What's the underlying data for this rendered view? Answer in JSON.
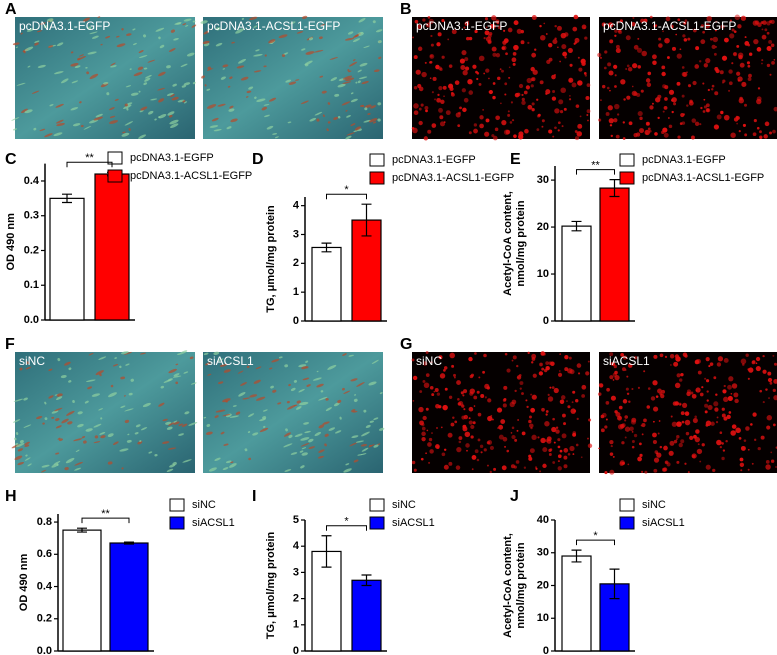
{
  "images": [
    {
      "panel": "A",
      "labels": [
        "pcDNA3.1-EGFP",
        "pcDNA3.1-ACSL1-EGFP"
      ]
    },
    {
      "panel": "B",
      "labels": [
        "pcDNA3.1-EGFP",
        "pcDNA3.1-ACSL1-EGFP"
      ]
    },
    {
      "panel": "F",
      "labels": [
        "siNC",
        "siACSL1"
      ]
    },
    {
      "panel": "G",
      "labels": [
        "siNC",
        "siACSL1"
      ]
    }
  ],
  "chart_data": [
    {
      "type": "bar",
      "panel": "C",
      "ylabel": [
        "OD 490 nm"
      ],
      "significance": "**",
      "series": [
        {
          "name": "pcDNA3.1-EGFP",
          "color": "#ffffff",
          "values": [
            0.35
          ],
          "errors": [
            0.012
          ]
        },
        {
          "name": "pcDNA3.1-ACSL1-EGFP",
          "color": "#ff0000",
          "values": [
            0.42
          ],
          "errors": [
            0.005
          ]
        }
      ],
      "ylim": [
        0,
        0.45
      ],
      "yticks": [
        {
          "value": 0,
          "label": "0.0"
        },
        0.1,
        0.2,
        0.3,
        0.4
      ]
    },
    {
      "type": "bar",
      "panel": "D",
      "ylabel": [
        "TG, μmol/mg protein"
      ],
      "significance": "*",
      "series": [
        {
          "name": "pcDNA3.1-EGFP",
          "color": "#ffffff",
          "values": [
            2.55
          ],
          "errors": [
            0.15
          ]
        },
        {
          "name": "pcDNA3.1-ACSL1-EGFP",
          "color": "#ff0000",
          "values": [
            3.5
          ],
          "errors": [
            0.55
          ]
        }
      ],
      "ylim": [
        0,
        4.3
      ],
      "yticks": [
        0,
        1,
        2,
        3,
        4
      ]
    },
    {
      "type": "bar",
      "panel": "E",
      "ylabel": [
        "Acetyl-CoA content,",
        "nmol/mg protein"
      ],
      "significance": "**",
      "series": [
        {
          "name": "pcDNA3.1-EGFP",
          "color": "#ffffff",
          "values": [
            20.2
          ],
          "errors": [
            1
          ]
        },
        {
          "name": "pcDNA3.1-ACSL1-EGFP",
          "color": "#ff0000",
          "values": [
            28.3
          ],
          "errors": [
            1.8
          ]
        }
      ],
      "ylim": [
        0,
        33
      ],
      "yticks": [
        0,
        10,
        20,
        30
      ]
    },
    {
      "type": "bar",
      "panel": "H",
      "ylabel": [
        "OD 490 nm"
      ],
      "significance": "**",
      "series": [
        {
          "name": "siNC",
          "color": "#ffffff",
          "values": [
            0.75
          ],
          "errors": [
            0.012
          ]
        },
        {
          "name": "siACSL1",
          "color": "#0000ff",
          "values": [
            0.67
          ],
          "errors": [
            0.006
          ]
        }
      ],
      "ylim": [
        0,
        0.85
      ],
      "yticks": [
        {
          "value": 0,
          "label": "0.0"
        },
        0.2,
        0.4,
        0.6,
        0.8
      ]
    },
    {
      "type": "bar",
      "panel": "I",
      "ylabel": [
        "TG, μmol/mg protein"
      ],
      "significance": "*",
      "series": [
        {
          "name": "siNC",
          "color": "#ffffff",
          "values": [
            3.8
          ],
          "errors": [
            0.6
          ]
        },
        {
          "name": "siACSL1",
          "color": "#0000ff",
          "values": [
            2.7
          ],
          "errors": [
            0.2
          ]
        }
      ],
      "ylim": [
        0,
        5
      ],
      "yticks": [
        0,
        1,
        2,
        3,
        4,
        5
      ]
    },
    {
      "type": "bar",
      "panel": "J",
      "ylabel": [
        "Acetyl-CoA content,",
        "nmol/mg protein"
      ],
      "significance": "*",
      "series": [
        {
          "name": "siNC",
          "color": "#ffffff",
          "values": [
            29
          ],
          "errors": [
            1.8
          ]
        },
        {
          "name": "siACSL1",
          "color": "#0000ff",
          "values": [
            20.5
          ],
          "errors": [
            4.5
          ]
        }
      ],
      "ylim": [
        0,
        40
      ],
      "yticks": [
        0,
        10,
        20,
        30,
        40
      ]
    }
  ]
}
